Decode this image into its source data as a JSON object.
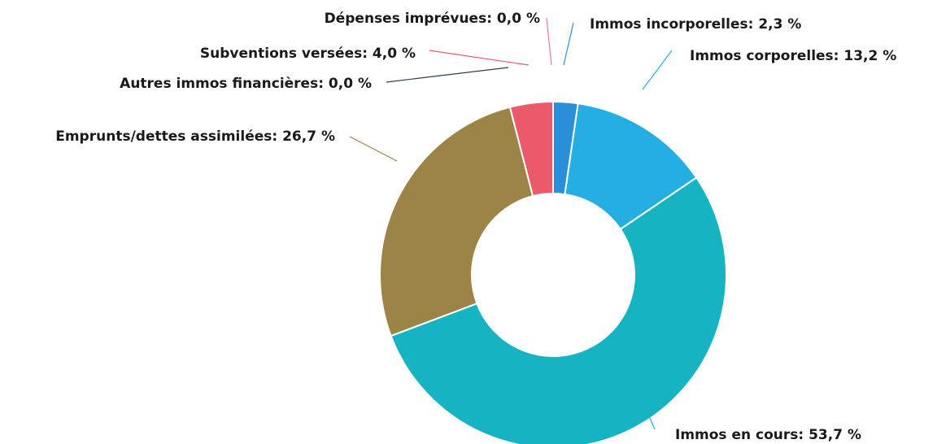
{
  "chart_data": {
    "type": "pie",
    "variant": "donut",
    "slices": [
      {
        "label": "Immos incorporelles",
        "value": 2.3,
        "display": "2,3 %",
        "color": "#2a8fd8"
      },
      {
        "label": "Immos corporelles",
        "value": 13.2,
        "display": "13,2 %",
        "color": "#24aee2"
      },
      {
        "label": "Immos en cours",
        "value": 53.7,
        "display": "53,7 %",
        "color": "#16b3c2"
      },
      {
        "label": "Emprunts/dettes assimilées",
        "value": 26.7,
        "display": "26,7 %",
        "color": "#9c8446"
      },
      {
        "label": "Autres immos financières",
        "value": 0.0,
        "display": "0,0 %",
        "color": "#2d3e50"
      },
      {
        "label": "Subventions versées",
        "value": 4.0,
        "display": "4,0 %",
        "color": "#ea5a6b"
      },
      {
        "label": "Dépenses imprévues",
        "value": 0.0,
        "display": "0,0 %",
        "color": "#e57a9a"
      }
    ],
    "legend": "none",
    "labels": "outside with leader lines"
  }
}
